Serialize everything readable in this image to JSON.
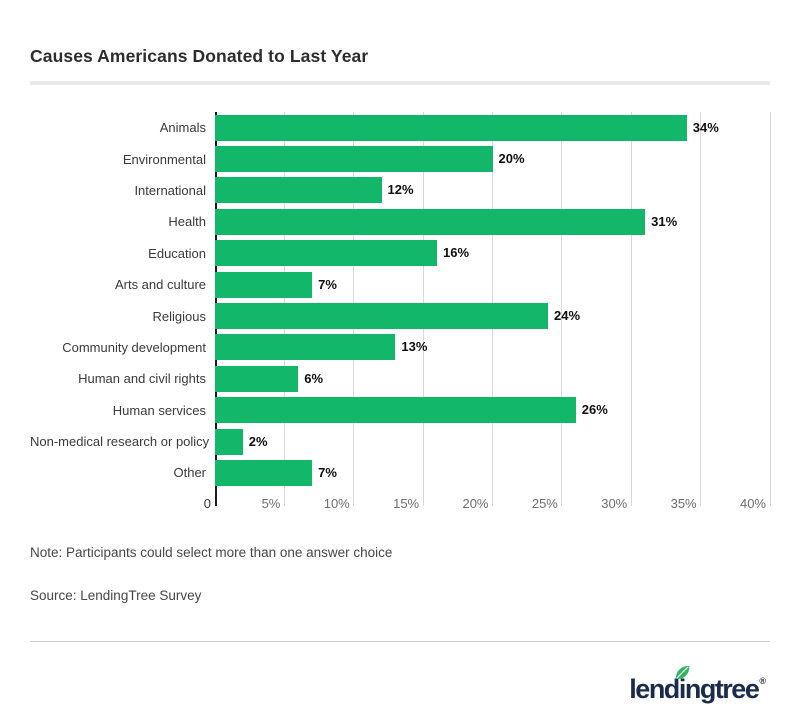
{
  "header": {
    "title": "Causes Americans Donated to Last Year"
  },
  "chart_data": {
    "type": "bar",
    "orientation": "horizontal",
    "title": "Causes Americans Donated to Last Year",
    "categories": [
      "Animals",
      "Environmental",
      "International",
      "Health",
      "Education",
      "Arts and culture",
      "Religious",
      "Community development",
      "Human and civil rights",
      "Human services",
      "Non-medical research or policy",
      "Other"
    ],
    "values": [
      34,
      20,
      12,
      31,
      16,
      7,
      24,
      13,
      6,
      26,
      2,
      7
    ],
    "value_labels": [
      "34%",
      "20%",
      "12%",
      "31%",
      "16%",
      "7%",
      "24%",
      "13%",
      "6%",
      "26%",
      "2%",
      "7%"
    ],
    "xlabel": "",
    "ylabel": "",
    "xlim": [
      0,
      40
    ],
    "x_ticks": [
      {
        "value": 0,
        "label": "0"
      },
      {
        "value": 5,
        "label": "5%"
      },
      {
        "value": 10,
        "label": "10%"
      },
      {
        "value": 15,
        "label": "15%"
      },
      {
        "value": 20,
        "label": "20%"
      },
      {
        "value": 25,
        "label": "25%"
      },
      {
        "value": 30,
        "label": "30%"
      },
      {
        "value": 35,
        "label": "35%"
      },
      {
        "value": 40,
        "label": "40%"
      }
    ],
    "grid": true,
    "legend": false,
    "bar_color": "#12b76a"
  },
  "notes": {
    "note": "Note: Participants could select more than one answer choice",
    "source": "Source: LendingTree Survey"
  },
  "footer": {
    "wordmark_pre": "lend",
    "wordmark_i": "i",
    "wordmark_post": "ngtree",
    "registered": "®",
    "leaf_icon": "leaf-icon"
  },
  "colors": {
    "bar": "#12b76a",
    "leaf": "#2db75e",
    "wordmark": "#1b2b4b",
    "axis_line": "#1c1c1c",
    "gridline": "#d9d9d9",
    "tick_label": "#6e6e6e",
    "category_label": "#3a3a3a",
    "value_label": "#0f0f0f",
    "title": "#2d2d2d",
    "note_text": "#474747",
    "title_divider": "#e8e8e8",
    "footer_divider": "#cccccc"
  }
}
